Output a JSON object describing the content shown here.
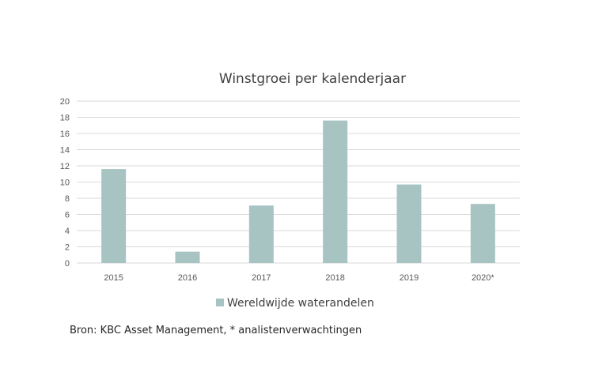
{
  "chart_data": {
    "type": "bar",
    "title": "Winstgroei per kalenderjaar",
    "categories": [
      "2015",
      "2016",
      "2017",
      "2018",
      "2019",
      "2020*"
    ],
    "series": [
      {
        "name": "Wereldwijde waterandelen",
        "values": [
          11.6,
          1.4,
          7.1,
          17.6,
          9.7,
          7.3
        ]
      }
    ],
    "ylim": [
      0,
      20
    ],
    "yticks": [
      0,
      2,
      4,
      6,
      8,
      10,
      12,
      14,
      16,
      18,
      20
    ],
    "grid": true,
    "legend_position": "bottom",
    "bar_color": "#a7c4c3"
  },
  "source_note": "Bron: KBC Asset Management, * analistenverwachtingen"
}
